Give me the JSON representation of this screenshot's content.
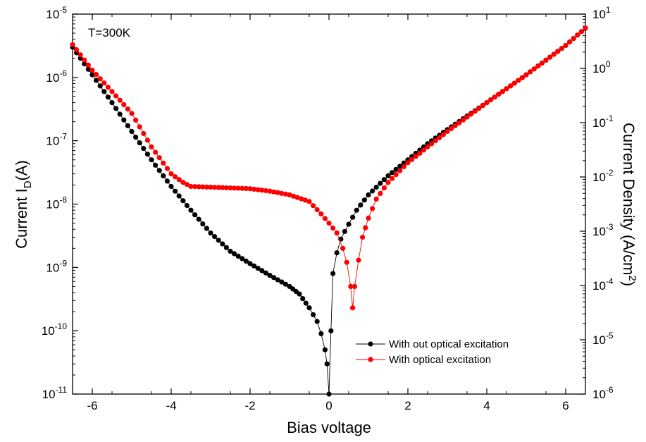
{
  "chart_data": {
    "type": "scatter",
    "annotation": "T=300K",
    "xlabel": "Bias voltage",
    "ylabel_left": "Current I_D(A)",
    "ylabel_right": "Current Density (A/cm^2)",
    "xlim": [
      -6.5,
      6.5
    ],
    "x_ticks": [
      -6,
      -4,
      -2,
      0,
      2,
      4,
      6
    ],
    "x_tick_labels": [
      "-6",
      "-4",
      "-2",
      "0",
      "2",
      "4",
      "6"
    ],
    "y_scale": "log",
    "ylim_left": [
      1e-11,
      1e-05
    ],
    "ylim_right": [
      1e-06,
      10
    ],
    "y_left_ticks": [
      {
        "base": "10",
        "exp": "-11"
      },
      {
        "base": "10",
        "exp": "-10"
      },
      {
        "base": "10",
        "exp": "-9"
      },
      {
        "base": "10",
        "exp": "-8"
      },
      {
        "base": "10",
        "exp": "-7"
      },
      {
        "base": "10",
        "exp": "-6"
      },
      {
        "base": "10",
        "exp": "-5"
      }
    ],
    "y_right_ticks": [
      {
        "base": "10",
        "exp": "-6"
      },
      {
        "base": "10",
        "exp": "-5"
      },
      {
        "base": "10",
        "exp": "-4"
      },
      {
        "base": "10",
        "exp": "-3"
      },
      {
        "base": "10",
        "exp": "-2"
      },
      {
        "base": "10",
        "exp": "-1"
      },
      {
        "base": "10",
        "exp": "0"
      },
      {
        "base": "10",
        "exp": "1"
      }
    ],
    "legend_position": "bottom-right",
    "grid": false,
    "series": [
      {
        "name": "With out optical excitation",
        "color": "#000000",
        "x": [
          -6.5,
          -6.0,
          -5.5,
          -5.0,
          -4.5,
          -4.0,
          -3.5,
          -3.0,
          -2.5,
          -2.0,
          -1.5,
          -1.0,
          -0.75,
          -0.5,
          -0.3,
          -0.2,
          -0.1,
          -0.05,
          0.0,
          0.05,
          0.1,
          0.2,
          0.3,
          0.4,
          0.5,
          0.7,
          1.0,
          1.5,
          2.0,
          2.5,
          3.0,
          4.0,
          5.0,
          6.0,
          6.5
        ],
        "y": [
          3e-06,
          1.1e-06,
          4e-07,
          1.4e-07,
          5e-08,
          1.9e-08,
          8e-09,
          3.5e-09,
          1.8e-09,
          1.15e-09,
          7.5e-10,
          5e-10,
          3.8e-10,
          2.3e-10,
          1.4e-10,
          9e-11,
          5e-11,
          3e-11,
          1e-11,
          1e-10,
          8e-10,
          1.7e-09,
          2.8e-09,
          3.7e-09,
          4.8e-09,
          8e-09,
          1.4e-08,
          2.8e-08,
          5e-08,
          9e-08,
          1.5e-07,
          4e-07,
          1.1e-06,
          3.2e-06,
          6e-06
        ]
      },
      {
        "name": "With optical excitation",
        "color": "#ff0000",
        "x": [
          -6.5,
          -6.0,
          -5.5,
          -5.0,
          -4.5,
          -4.0,
          -3.7,
          -3.5,
          -3.0,
          -2.5,
          -2.0,
          -1.5,
          -1.0,
          -0.5,
          -0.2,
          0.0,
          0.2,
          0.35,
          0.45,
          0.55,
          0.6,
          0.65,
          0.75,
          0.85,
          1.0,
          1.2,
          1.5,
          2.0,
          2.5,
          3.0,
          4.0,
          5.0,
          6.0,
          6.5
        ],
        "y": [
          3.3e-06,
          1.3e-06,
          6e-07,
          2.7e-07,
          8e-08,
          3e-08,
          2.2e-08,
          1.9e-08,
          1.85e-08,
          1.8e-08,
          1.75e-08,
          1.6e-08,
          1.4e-08,
          1.1e-08,
          7e-09,
          5e-09,
          3.5e-09,
          2e-09,
          1.2e-09,
          5e-10,
          2.3e-10,
          5e-10,
          1.3e-09,
          3e-09,
          6e-09,
          1.2e-08,
          2.2e-08,
          4.5e-08,
          8e-08,
          1.4e-07,
          4e-07,
          1.1e-06,
          3.2e-06,
          6e-06
        ]
      }
    ]
  }
}
